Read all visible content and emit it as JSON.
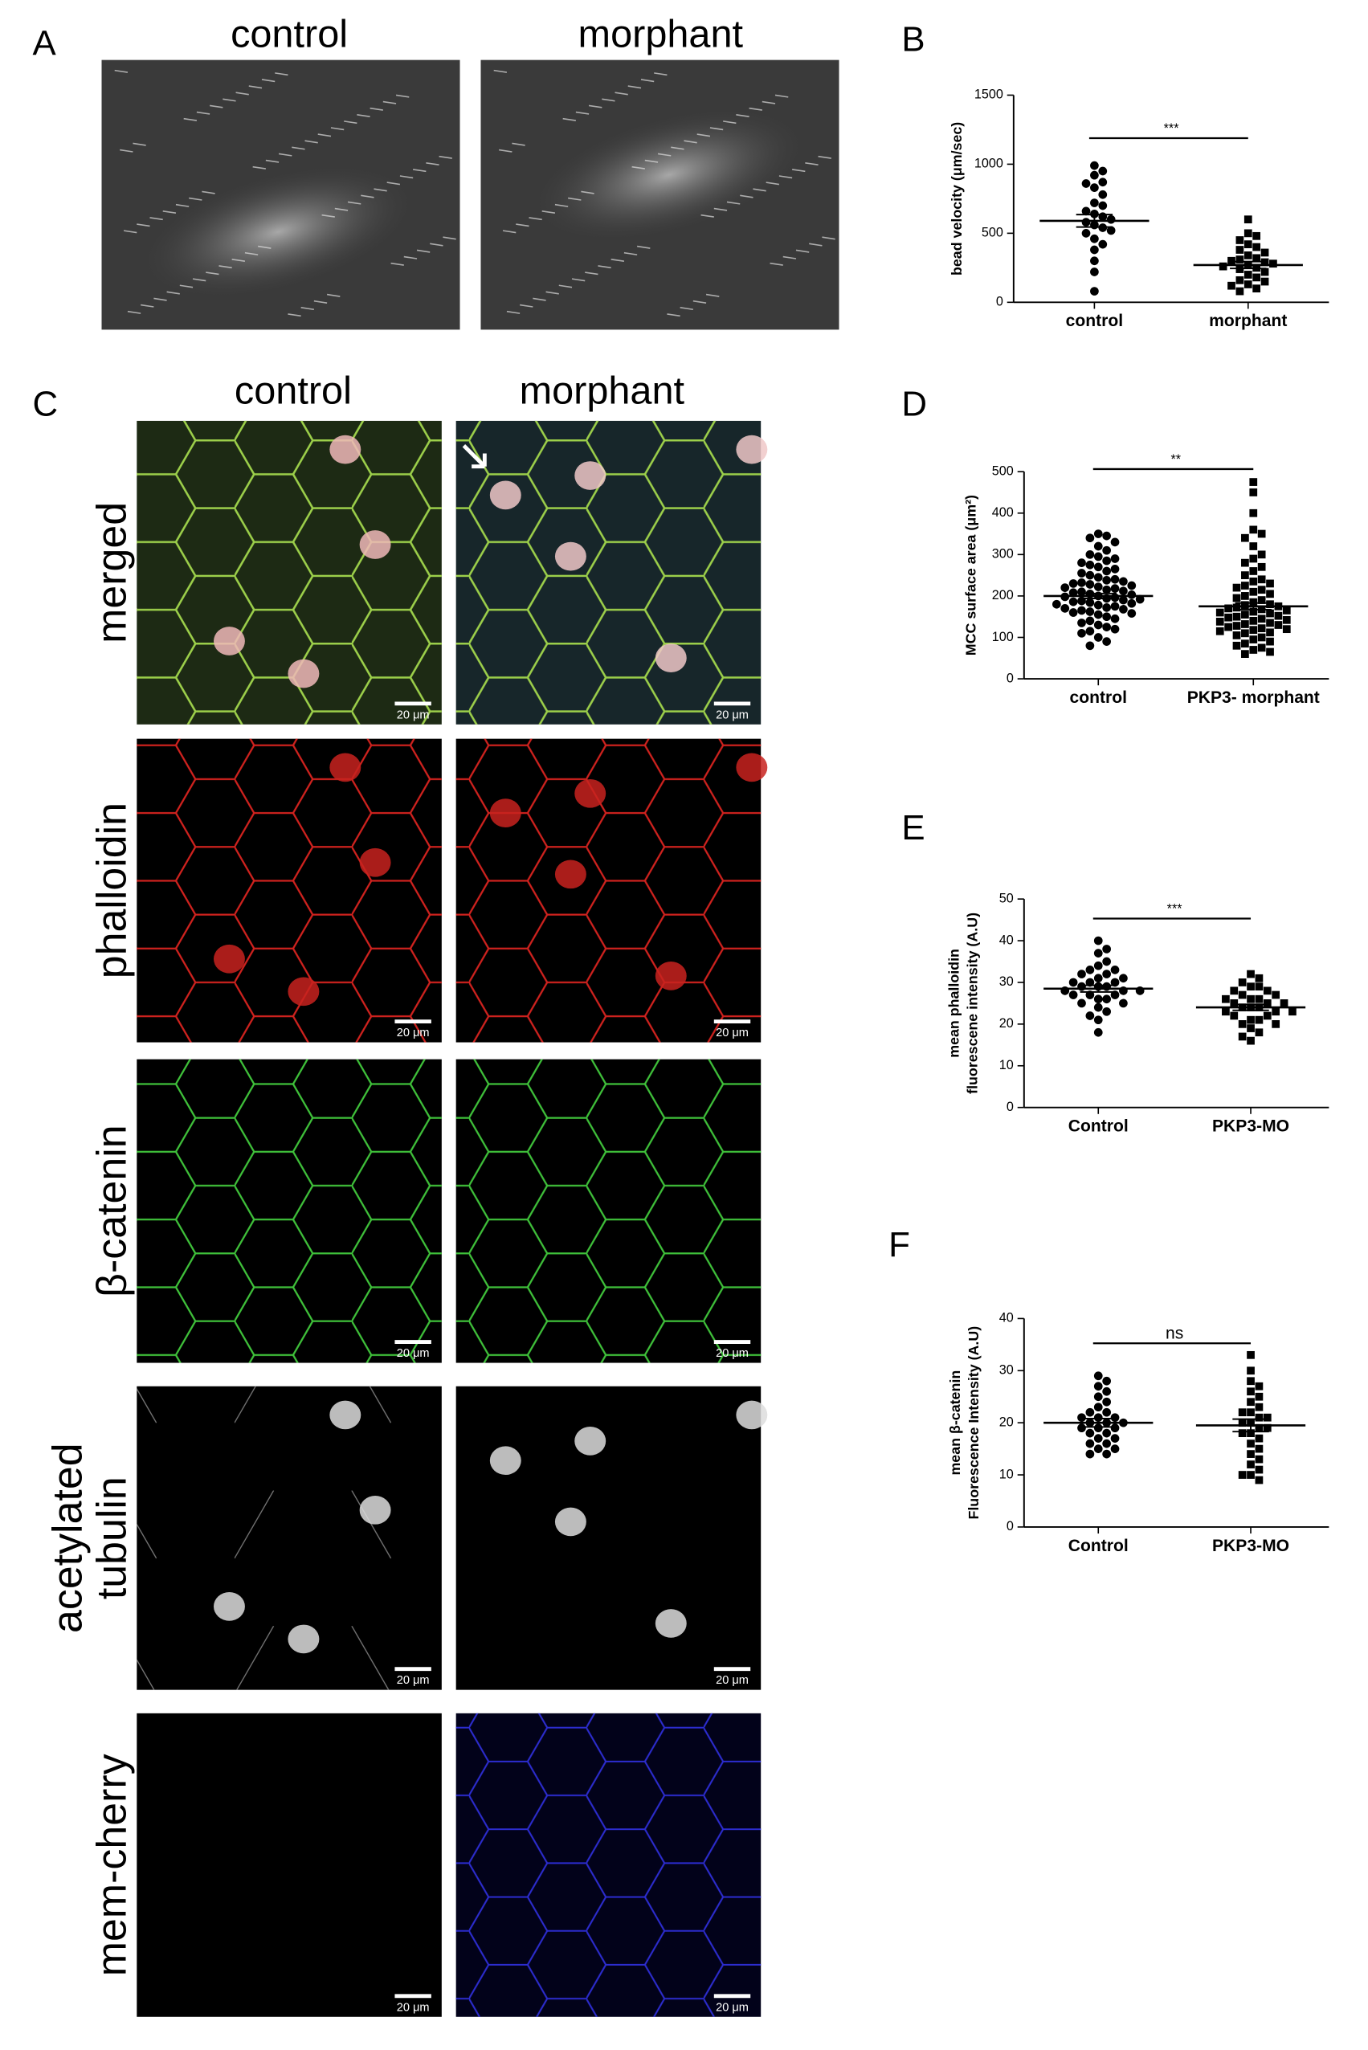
{
  "panel_labels": [
    "A",
    "B",
    "C",
    "D",
    "E",
    "F"
  ],
  "panel_a_columns": [
    "control",
    "morphant"
  ],
  "panel_c_columns": [
    "control",
    "morphant"
  ],
  "panel_c_rows": [
    [
      "merged"
    ],
    [
      "phalloidin"
    ],
    [
      "β-catenin"
    ],
    [
      "acetylated",
      "tubulin"
    ],
    [
      "mem-cherry"
    ]
  ],
  "scale_bar": "20 μm",
  "chart_data": [
    {
      "type": "dotplot",
      "ylabel": [
        "bead velocity (μm/sec)"
      ],
      "categories": [
        "control",
        "morphant"
      ],
      "ylim": [
        0,
        1500
      ],
      "yticks": [
        0,
        500,
        1000,
        1500
      ],
      "significance": "***",
      "groups": [
        {
          "marker": "circle",
          "color": "#000000",
          "mean": 590,
          "error": 45,
          "values": [
            990,
            950,
            920,
            870,
            860,
            830,
            780,
            720,
            700,
            660,
            640,
            620,
            600,
            580,
            560,
            540,
            520,
            500,
            460,
            420,
            380,
            300,
            220,
            80
          ]
        },
        {
          "marker": "square",
          "color": "#000000",
          "mean": 270,
          "error": 25,
          "values": [
            600,
            500,
            480,
            450,
            420,
            400,
            380,
            360,
            340,
            320,
            310,
            300,
            290,
            280,
            270,
            260,
            250,
            240,
            220,
            200,
            180,
            160,
            150,
            130,
            120,
            100,
            80
          ]
        }
      ]
    },
    {
      "type": "dotplot",
      "ylabel": [
        "MCC surface area (μm²)"
      ],
      "categories": [
        "control",
        "PKP3- morphant"
      ],
      "ylim": [
        0,
        500
      ],
      "yticks": [
        0,
        100,
        200,
        300,
        400,
        500
      ],
      "significance": "**",
      "groups": [
        {
          "marker": "circle",
          "color": "#000000",
          "mean": 200,
          "error": 6,
          "values": [
            350,
            345,
            340,
            330,
            320,
            310,
            300,
            295,
            290,
            285,
            280,
            275,
            270,
            265,
            260,
            255,
            250,
            245,
            240,
            238,
            235,
            232,
            230,
            228,
            225,
            222,
            220,
            218,
            215,
            212,
            210,
            208,
            205,
            203,
            200,
            198,
            196,
            194,
            192,
            190,
            188,
            186,
            184,
            182,
            180,
            178,
            175,
            172,
            170,
            168,
            165,
            162,
            160,
            158,
            155,
            150,
            145,
            140,
            135,
            130,
            125,
            120,
            115,
            110,
            100,
            90,
            80
          ]
        },
        {
          "marker": "square",
          "color": "#000000",
          "mean": 175,
          "error": 8,
          "values": [
            475,
            450,
            400,
            360,
            350,
            340,
            320,
            300,
            290,
            280,
            270,
            260,
            250,
            240,
            235,
            230,
            225,
            220,
            215,
            210,
            205,
            200,
            195,
            190,
            185,
            180,
            178,
            175,
            172,
            170,
            168,
            165,
            162,
            160,
            158,
            155,
            152,
            150,
            148,
            145,
            142,
            140,
            138,
            135,
            132,
            130,
            128,
            125,
            122,
            120,
            118,
            115,
            112,
            110,
            105,
            100,
            95,
            90,
            85,
            80,
            75,
            70,
            65,
            60
          ]
        }
      ]
    },
    {
      "type": "dotplot",
      "ylabel": [
        "mean phalloidin",
        "fluorescene intensity (A.U)"
      ],
      "categories": [
        "Control",
        "PKP3-MO"
      ],
      "ylim": [
        0,
        50
      ],
      "yticks": [
        0,
        10,
        20,
        30,
        40,
        50
      ],
      "significance": "***",
      "groups": [
        {
          "marker": "circle",
          "color": "#000000",
          "mean": 28.5,
          "error": 0.8,
          "values": [
            40,
            38,
            37,
            35,
            34,
            33,
            33,
            32,
            32,
            31,
            31,
            30,
            30,
            30,
            29,
            29,
            29,
            28,
            28,
            28,
            27,
            27,
            27,
            26,
            26,
            25,
            25,
            24,
            23,
            22,
            21,
            18
          ]
        },
        {
          "marker": "square",
          "color": "#000000",
          "mean": 24,
          "error": 0.7,
          "values": [
            32,
            31,
            30,
            29,
            29,
            28,
            28,
            27,
            27,
            26,
            26,
            26,
            25,
            25,
            25,
            24,
            24,
            24,
            23,
            23,
            23,
            22,
            22,
            21,
            21,
            20,
            20,
            19,
            18,
            17,
            16
          ]
        }
      ]
    },
    {
      "type": "dotplot",
      "ylabel": [
        "mean β-catenin",
        "Fluorescence Intensity (A.U)"
      ],
      "categories": [
        "Control",
        "PKP3-MO"
      ],
      "ylim": [
        0,
        40
      ],
      "yticks": [
        0,
        10,
        20,
        30,
        40
      ],
      "significance": "ns",
      "groups": [
        {
          "marker": "circle",
          "color": "#000000",
          "mean": 20,
          "error": 0.8,
          "values": [
            29,
            28,
            27,
            26,
            25,
            24,
            23,
            22,
            22,
            21,
            21,
            21,
            20,
            20,
            20,
            19,
            19,
            19,
            18,
            18,
            17,
            17,
            16,
            16,
            15,
            15,
            14,
            14
          ]
        },
        {
          "marker": "square",
          "color": "#000000",
          "mean": 19.5,
          "error": 1.2,
          "values": [
            33,
            30,
            28,
            27,
            26,
            25,
            24,
            23,
            22,
            22,
            21,
            21,
            20,
            20,
            19,
            19,
            18,
            18,
            17,
            16,
            15,
            14,
            13,
            12,
            11,
            10,
            10,
            9
          ]
        }
      ]
    }
  ]
}
